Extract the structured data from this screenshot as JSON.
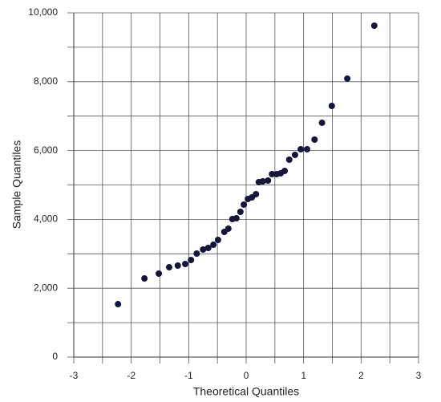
{
  "chart_data": {
    "type": "scatter",
    "xlabel": "Theoretical Quantiles",
    "ylabel": "Sample Quantiles",
    "color": "#14143c",
    "grid": true,
    "xlim": [
      -3,
      3
    ],
    "xticks": [
      -3,
      -2,
      -1,
      0,
      1,
      2,
      3
    ],
    "ylim": [
      0,
      10000
    ],
    "yticks": [
      0,
      {
        "value": 2000,
        "label": "2,000"
      },
      {
        "value": 4000,
        "label": "4,000"
      },
      {
        "value": 6000,
        "label": "6,000"
      },
      {
        "value": 8000,
        "label": "8,000"
      },
      {
        "value": 10000,
        "label": "10,000"
      }
    ],
    "x": [
      -2.23,
      -1.77,
      -1.52,
      -1.34,
      -1.19,
      -1.06,
      -0.96,
      -0.86,
      -0.75,
      -0.66,
      -0.57,
      -0.49,
      -0.38,
      -0.31,
      -0.24,
      -0.17,
      -0.1,
      -0.04,
      0.03,
      0.1,
      0.17,
      0.22,
      0.29,
      0.38,
      0.45,
      0.53,
      0.6,
      0.67,
      0.75,
      0.85,
      0.95,
      1.06,
      1.19,
      1.32,
      1.49,
      1.76,
      2.23
    ],
    "values": [
      1538,
      2284,
      2424,
      2610,
      2657,
      2704,
      2820,
      3007,
      3124,
      3170,
      3263,
      3403,
      3636,
      3730,
      4009,
      4033,
      4219,
      4429,
      4592,
      4639,
      4732,
      5082,
      5105,
      5128,
      5315,
      5315,
      5338,
      5408,
      5734,
      5874,
      6037,
      6037,
      6317,
      6807,
      7296,
      8089,
      9627
    ]
  }
}
